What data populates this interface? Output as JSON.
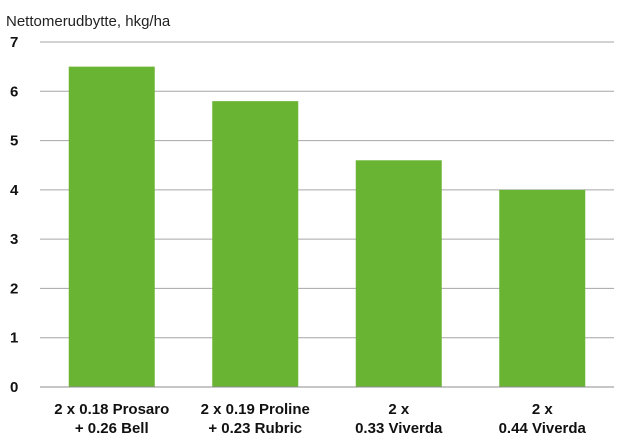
{
  "chart_data": {
    "type": "bar",
    "title": "",
    "ylabel": "Nettomerudbytte, hkg/ha",
    "xlabel": "",
    "categories": [
      [
        "2 x 0.18 Prosaro",
        "+ 0.26 Bell"
      ],
      [
        "2 x 0.19 Proline",
        "+ 0.23 Rubric"
      ],
      [
        "2 x",
        "0.33 Viverda"
      ],
      [
        "2 x",
        "0.44 Viverda"
      ]
    ],
    "values": [
      6.5,
      5.8,
      4.6,
      4.0
    ],
    "ylim": [
      0,
      7
    ],
    "yticks": [
      "0",
      "1",
      "2",
      "3",
      "4",
      "5",
      "6",
      "7"
    ],
    "grid": true,
    "bar_color": "#6ab434"
  }
}
